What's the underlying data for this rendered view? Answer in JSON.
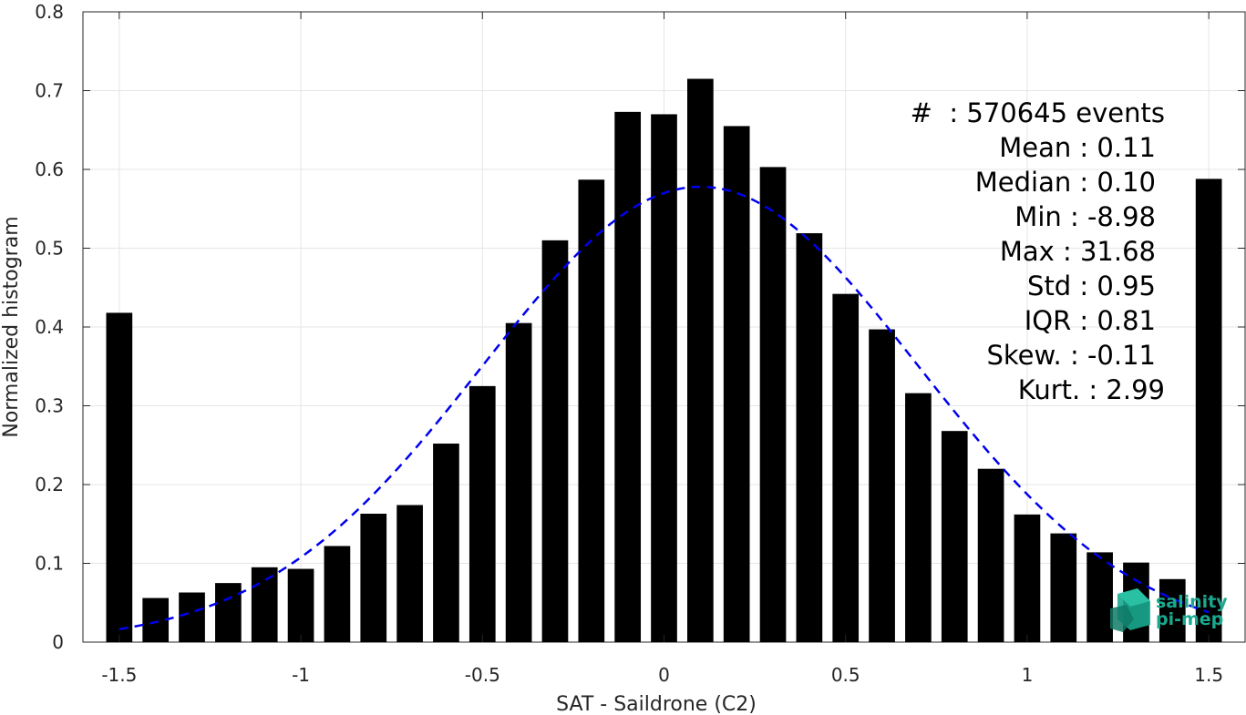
{
  "chart_data": {
    "type": "bar",
    "xlabel": "SAT - Saildrone (C2)",
    "ylabel": "Normalized histogram",
    "xlim": [
      -1.6,
      1.6
    ],
    "ylim": [
      0,
      0.8
    ],
    "grid": true,
    "xticks": [
      -1.5,
      -1,
      -0.5,
      0,
      0.5,
      1,
      1.5
    ],
    "xtick_labels": [
      "-1.5",
      "-1",
      "-0.5",
      "0",
      "0.5",
      "1",
      "1.5"
    ],
    "yticks": [
      0,
      0.1,
      0.2,
      0.3,
      0.4,
      0.5,
      0.6,
      0.7,
      0.8
    ],
    "ytick_labels": [
      "0",
      "0.1",
      "0.2",
      "0.3",
      "0.4",
      "0.5",
      "0.6",
      "0.7",
      "0.8"
    ],
    "bar_color": "#000000",
    "bars": {
      "x": [
        -1.5,
        -1.4,
        -1.3,
        -1.2,
        -1.1,
        -1.0,
        -0.9,
        -0.8,
        -0.7,
        -0.6,
        -0.5,
        -0.4,
        -0.3,
        -0.2,
        -0.1,
        0.0,
        0.1,
        0.2,
        0.3,
        0.4,
        0.5,
        0.6,
        0.7,
        0.8,
        0.9,
        1.0,
        1.1,
        1.2,
        1.3,
        1.4,
        1.5
      ],
      "values": [
        0.418,
        0.056,
        0.063,
        0.075,
        0.095,
        0.093,
        0.122,
        0.163,
        0.174,
        0.252,
        0.325,
        0.405,
        0.51,
        0.587,
        0.673,
        0.67,
        0.715,
        0.655,
        0.603,
        0.519,
        0.442,
        0.397,
        0.316,
        0.268,
        0.22,
        0.162,
        0.138,
        0.114,
        0.101,
        0.08,
        0.588
      ]
    },
    "fit_curve": {
      "style": "dashed",
      "color": "#0000ee",
      "mean": 0.1,
      "amplitude": 0.578,
      "sigma": 0.6,
      "x_range": [
        -1.5,
        1.5
      ]
    },
    "stats_annotation": {
      "lines": [
        "#  : 570645 events",
        "Mean : 0.11",
        "Median : 0.10",
        "Min : -8.98",
        "Max : 31.68",
        "Std : 0.95",
        "IQR : 0.81",
        "Skew. : -0.11",
        "Kurt. : 2.99"
      ]
    }
  },
  "logo": {
    "line1": "salinity",
    "line2": "pi-mep",
    "color": "#1aa88f"
  }
}
